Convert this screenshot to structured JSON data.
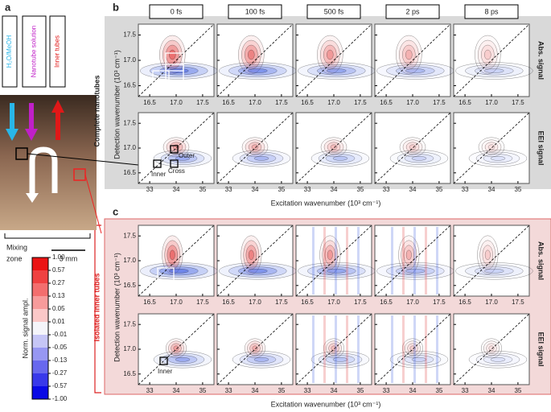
{
  "panel_a": {
    "label": "a",
    "inlet_labels": [
      "H₂O/MeOH",
      "Nanotube solution",
      "Inner tubes"
    ],
    "mixing": "Mixing",
    "zone": "zone",
    "scale": "3 mm",
    "colorbar": {
      "title": "Norm. signal ampl.",
      "ticks": [
        "1.00",
        "0.57",
        "0.27",
        "0.13",
        "0.05",
        "0.01",
        "-0.01",
        "-0.05",
        "-0.13",
        "-0.27",
        "-0.57",
        "-1.00"
      ]
    }
  },
  "panel_b": {
    "label": "b",
    "delays": [
      "0 fs",
      "100 fs",
      "500 fs",
      "2 ps",
      "8 ps"
    ],
    "group_label": "Complete nanotubes",
    "row_labels": [
      "Abs. signal",
      "EEI signal"
    ],
    "annotations": [
      "Outer",
      "Inner",
      "Cross"
    ]
  },
  "panel_c": {
    "label": "c",
    "group_label": "Isolated inner tubes",
    "row_labels": [
      "Abs. signal",
      "EEI signal"
    ],
    "annotations": [
      "Inner"
    ]
  },
  "axes": {
    "y_label": "Detection wavenumber (10³ cm⁻¹)",
    "x_label": "Excitation wavenumber (10³ cm⁻¹)",
    "abs_x_ticks": [
      "16.5",
      "17.0",
      "17.5"
    ],
    "eei_x_ticks": [
      "33",
      "34",
      "35"
    ],
    "y_ticks": [
      "17.5",
      "17.0",
      "16.5"
    ]
  }
}
